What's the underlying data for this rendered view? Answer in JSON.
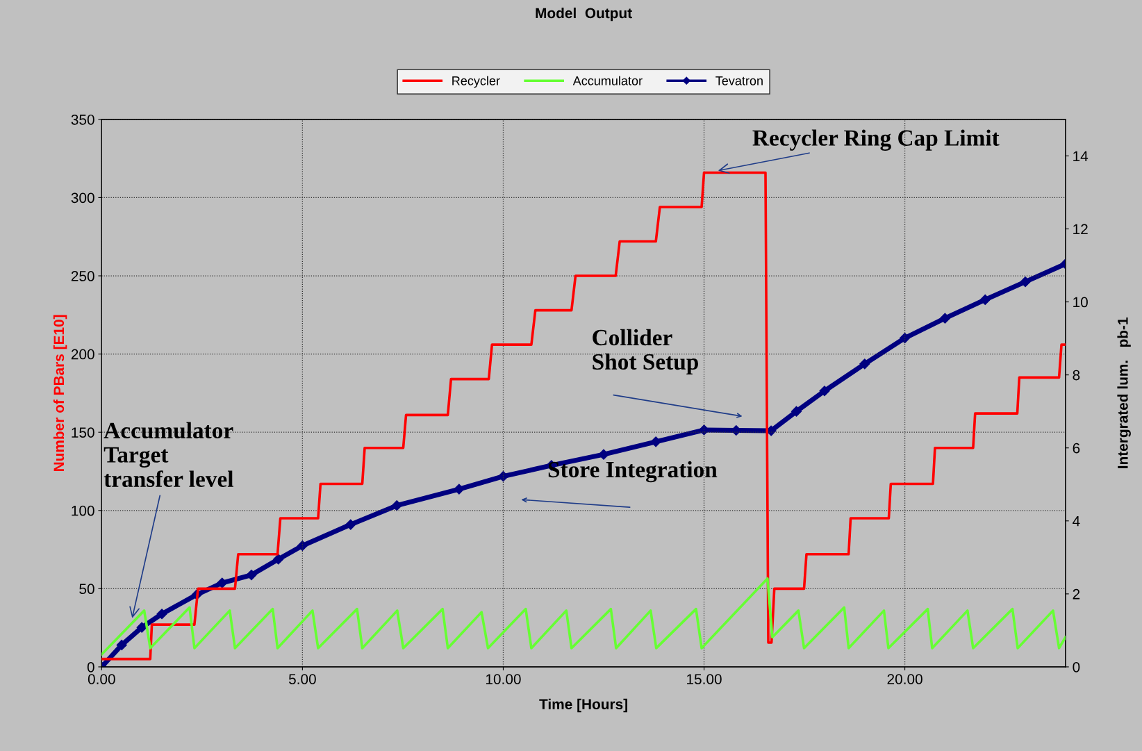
{
  "chart_data": {
    "type": "line",
    "title": "Model  Output",
    "xlabel": "Time [Hours]",
    "ylabel": "Number of PBars [E10]",
    "y2label": "Intergrated lum.   pb-1",
    "xlim": [
      0,
      24
    ],
    "xticks": [
      {
        "value": 0,
        "label": "0.00"
      },
      {
        "value": 5,
        "label": "5.00"
      },
      {
        "value": 10,
        "label": "10.00"
      },
      {
        "value": 15,
        "label": "15.00"
      },
      {
        "value": 20,
        "label": "20.00"
      }
    ],
    "ylim": [
      0,
      350
    ],
    "yticks": [
      0,
      50,
      100,
      150,
      200,
      250,
      300,
      350
    ],
    "y2lim": [
      0,
      15
    ],
    "y2ticks": [
      0,
      2,
      4,
      6,
      8,
      10,
      12,
      14
    ],
    "grid": true,
    "legend": "top",
    "series": [
      {
        "name": "Recycler",
        "color": "#ff0000",
        "marker": "none",
        "x": [
          0,
          1.21,
          1.25,
          2.31,
          2.4,
          3.32,
          3.4,
          4.38,
          4.45,
          5.39,
          5.45,
          6.49,
          6.55,
          7.51,
          7.58,
          8.62,
          8.7,
          9.64,
          9.72,
          10.7,
          10.8,
          11.7,
          11.8,
          12.8,
          12.9,
          13.8,
          13.9,
          14.94,
          15.0,
          16.53,
          16.6,
          16.68,
          16.75,
          17.49,
          17.55,
          18.6,
          18.65,
          19.6,
          19.65,
          20.7,
          20.75,
          21.7,
          21.75,
          22.8,
          22.85,
          23.84,
          23.9,
          24
        ],
        "values": [
          5,
          5,
          27,
          27,
          50,
          50,
          72,
          72,
          95,
          95,
          117,
          117,
          140,
          140,
          161,
          161,
          184,
          184,
          206,
          206,
          228,
          228,
          250,
          250,
          272,
          272,
          294,
          294,
          316,
          316,
          15.5,
          15.5,
          50,
          50,
          72,
          72,
          95,
          95,
          117,
          117,
          140,
          140,
          162,
          162,
          185,
          185,
          206,
          206
        ]
      },
      {
        "name": "Accumulator",
        "color": "#66ff33",
        "marker": "none",
        "x": [
          0,
          1.06,
          1.21,
          2.19,
          2.31,
          3.19,
          3.32,
          4.26,
          4.38,
          5.25,
          5.39,
          6.36,
          6.49,
          7.36,
          7.51,
          8.49,
          8.62,
          9.46,
          9.62,
          10.56,
          10.7,
          11.57,
          11.7,
          12.68,
          12.81,
          13.67,
          13.81,
          14.8,
          14.94,
          16.58,
          16.7,
          17.35,
          17.49,
          18.49,
          18.6,
          19.48,
          19.59,
          20.57,
          20.68,
          21.56,
          21.7,
          22.68,
          22.81,
          23.69,
          23.84,
          24
        ],
        "values": [
          8,
          36,
          12,
          38,
          12,
          36,
          12,
          37,
          12,
          36,
          12,
          37,
          12,
          36,
          12,
          37,
          12,
          35,
          12,
          37,
          12,
          36,
          12,
          37,
          12,
          36,
          12,
          37,
          12,
          56.5,
          19,
          36,
          12,
          38,
          12,
          36,
          12,
          37,
          12,
          36,
          12,
          37,
          12,
          36,
          12,
          19
        ]
      },
      {
        "name": "Tevatron",
        "color": "#000080",
        "marker": "diamond",
        "axis": "y2",
        "x": [
          0,
          0.5,
          1,
          1.5,
          2.37,
          3.0,
          3.73,
          4.4,
          5,
          6.2,
          7.35,
          8.9,
          10,
          11.2,
          12.5,
          13.8,
          15,
          15.8,
          16.67,
          17.3,
          18,
          19,
          20,
          21,
          22,
          23,
          24
        ],
        "values": [
          0,
          0.6,
          1.08,
          1.45,
          1.98,
          2.3,
          2.52,
          2.95,
          3.32,
          3.9,
          4.42,
          4.87,
          5.22,
          5.52,
          5.82,
          6.17,
          6.49,
          6.48,
          6.47,
          7.0,
          7.56,
          8.3,
          9.01,
          9.55,
          10.06,
          10.55,
          11.04
        ]
      }
    ],
    "annotations": [
      {
        "text": "Recycler Ring Cap Limit",
        "x": 15.3,
        "y": 317
      },
      "Collider\nShot Setup",
      "Store Integration",
      {
        "text": "Accumulator\nTarget\ntransfer level",
        "x": 0.75,
        "y": 30
      }
    ]
  }
}
